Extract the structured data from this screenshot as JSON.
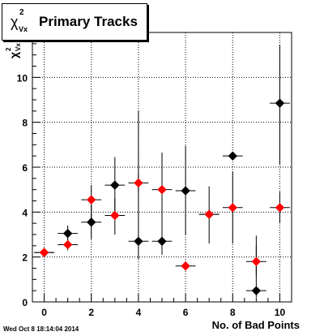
{
  "title": {
    "symbol": "χ",
    "superscript": "2",
    "subscript": "Vx",
    "text": "Primary Tracks"
  },
  "timestamp": "Wed Oct  8 18:14:04 2014",
  "colors": {
    "series_black": "#000000",
    "series_red": "#ff0000",
    "frame": "#000000"
  },
  "chart_data": {
    "type": "scatter",
    "xlabel": "No. of Bad Points",
    "ylabel": "χ²_Vx",
    "xlim": [
      -0.5,
      10.5
    ],
    "ylim": [
      0,
      12
    ],
    "xticks": [
      0,
      2,
      4,
      6,
      8,
      10
    ],
    "yticks": [
      0,
      2,
      4,
      6,
      8,
      10
    ],
    "grid": true,
    "series": [
      {
        "color": "black",
        "points": [
          {
            "x": 0,
            "y": 2.2,
            "ylo": 2.1,
            "yhi": 2.3
          },
          {
            "x": 1,
            "y": 3.05,
            "ylo": 2.75,
            "yhi": 3.4
          },
          {
            "x": 2,
            "y": 3.55,
            "ylo": 2.8,
            "yhi": 4.3
          },
          {
            "x": 3,
            "y": 5.2,
            "ylo": 4.0,
            "yhi": 6.45
          },
          {
            "x": 4,
            "y": 2.7,
            "ylo": 1.9,
            "yhi": 8.5
          },
          {
            "x": 5,
            "y": 2.7,
            "ylo": 2.1,
            "yhi": 3.4
          },
          {
            "x": 6,
            "y": 4.95,
            "ylo": 3.0,
            "yhi": 6.95
          },
          {
            "x": 7,
            "y": 3.9,
            "ylo": 3.75,
            "yhi": 4.05
          },
          {
            "x": 8,
            "y": 6.5,
            "ylo": 6.4,
            "yhi": 6.6
          },
          {
            "x": 9,
            "y": 0.5,
            "ylo": 0.2,
            "yhi": 2.95
          },
          {
            "x": 10,
            "y": 8.85,
            "ylo": 6.1,
            "yhi": 11.45
          }
        ]
      },
      {
        "color": "red",
        "points": [
          {
            "x": 0,
            "y": 2.2,
            "ylo": 2.1,
            "yhi": 2.3
          },
          {
            "x": 1,
            "y": 2.55,
            "ylo": 2.3,
            "yhi": 2.8
          },
          {
            "x": 2,
            "y": 4.55,
            "ylo": 3.5,
            "yhi": 5.2
          },
          {
            "x": 3,
            "y": 3.85,
            "ylo": 3.0,
            "yhi": 4.6
          },
          {
            "x": 4,
            "y": 5.3,
            "ylo": 4.9,
            "yhi": 5.7
          },
          {
            "x": 5,
            "y": 5.0,
            "ylo": 3.4,
            "yhi": 6.65
          },
          {
            "x": 6,
            "y": 1.6,
            "ylo": 1.4,
            "yhi": 1.8
          },
          {
            "x": 7,
            "y": 3.9,
            "ylo": 2.6,
            "yhi": 5.15
          },
          {
            "x": 8,
            "y": 4.2,
            "ylo": 2.6,
            "yhi": 5.8
          },
          {
            "x": 9,
            "y": 1.8,
            "ylo": 1.2,
            "yhi": 2.5
          },
          {
            "x": 10,
            "y": 4.2,
            "ylo": 3.5,
            "yhi": 4.9
          }
        ]
      }
    ]
  }
}
